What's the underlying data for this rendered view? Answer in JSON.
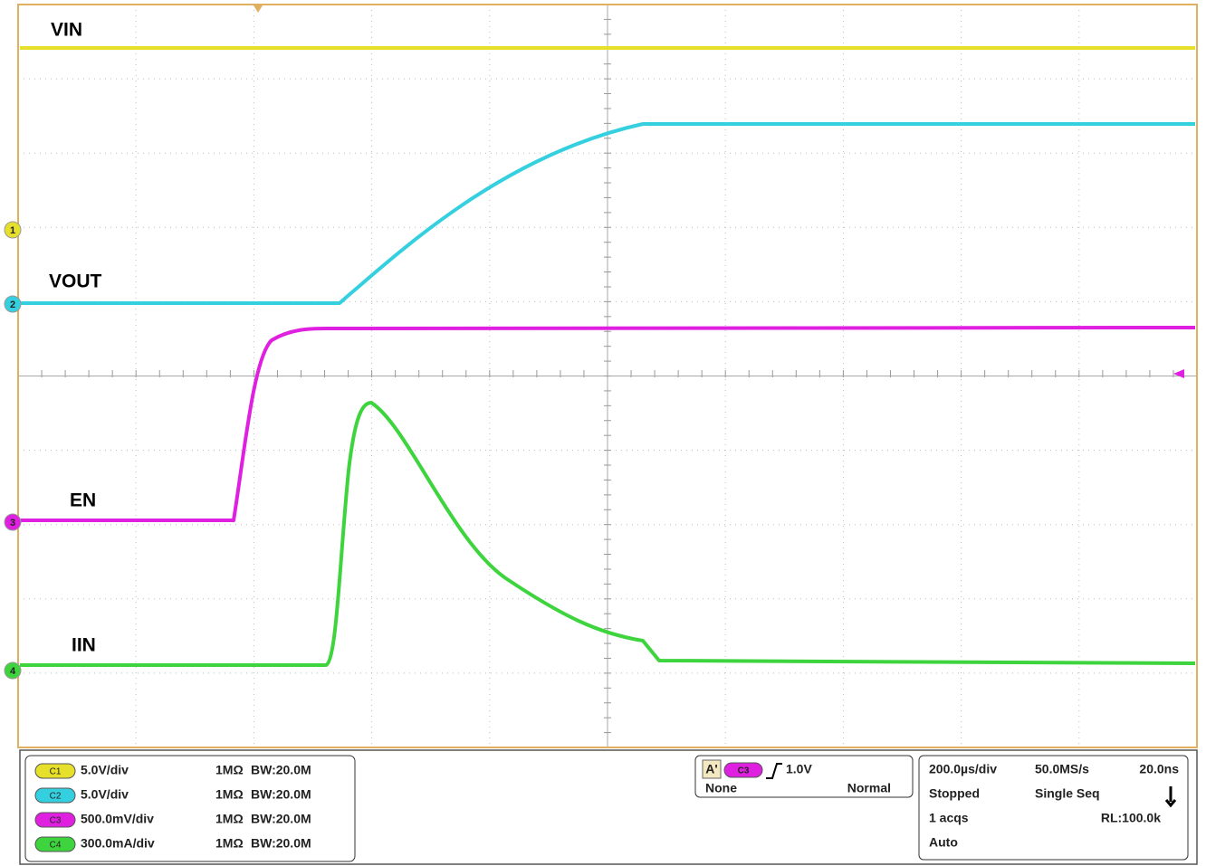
{
  "traces": [
    {
      "label": "VIN",
      "marker": "1"
    },
    {
      "label": "VOUT",
      "marker": "2"
    },
    {
      "label": "EN",
      "marker": "3"
    },
    {
      "label": "IIN",
      "marker": "4"
    }
  ],
  "channels": [
    {
      "badge": "C1",
      "scale": "5.0V/div",
      "impedance": "1MΩ",
      "bandwidth": "BW:20.0M"
    },
    {
      "badge": "C2",
      "scale": "5.0V/div",
      "impedance": "1MΩ",
      "bandwidth": "BW:20.0M"
    },
    {
      "badge": "C3",
      "scale": "500.0mV/div",
      "impedance": "1MΩ",
      "bandwidth": "BW:20.0M"
    },
    {
      "badge": "C4",
      "scale": "300.0mA/div",
      "impedance": "1MΩ",
      "bandwidth": "BW:20.0M"
    }
  ],
  "trigger": {
    "mode_badge": "A'",
    "source": "C3",
    "level": "1.0V",
    "coupling": "None",
    "type": "Normal"
  },
  "acquisition": {
    "timebase": "200.0µs/div",
    "sample_rate": "50.0MS/s",
    "resolution": "20.0ns",
    "state": "Stopped",
    "run_mode": "Single Seq",
    "acqs": "1 acqs",
    "record_length": "RL:100.0k",
    "auto": "Auto"
  }
}
